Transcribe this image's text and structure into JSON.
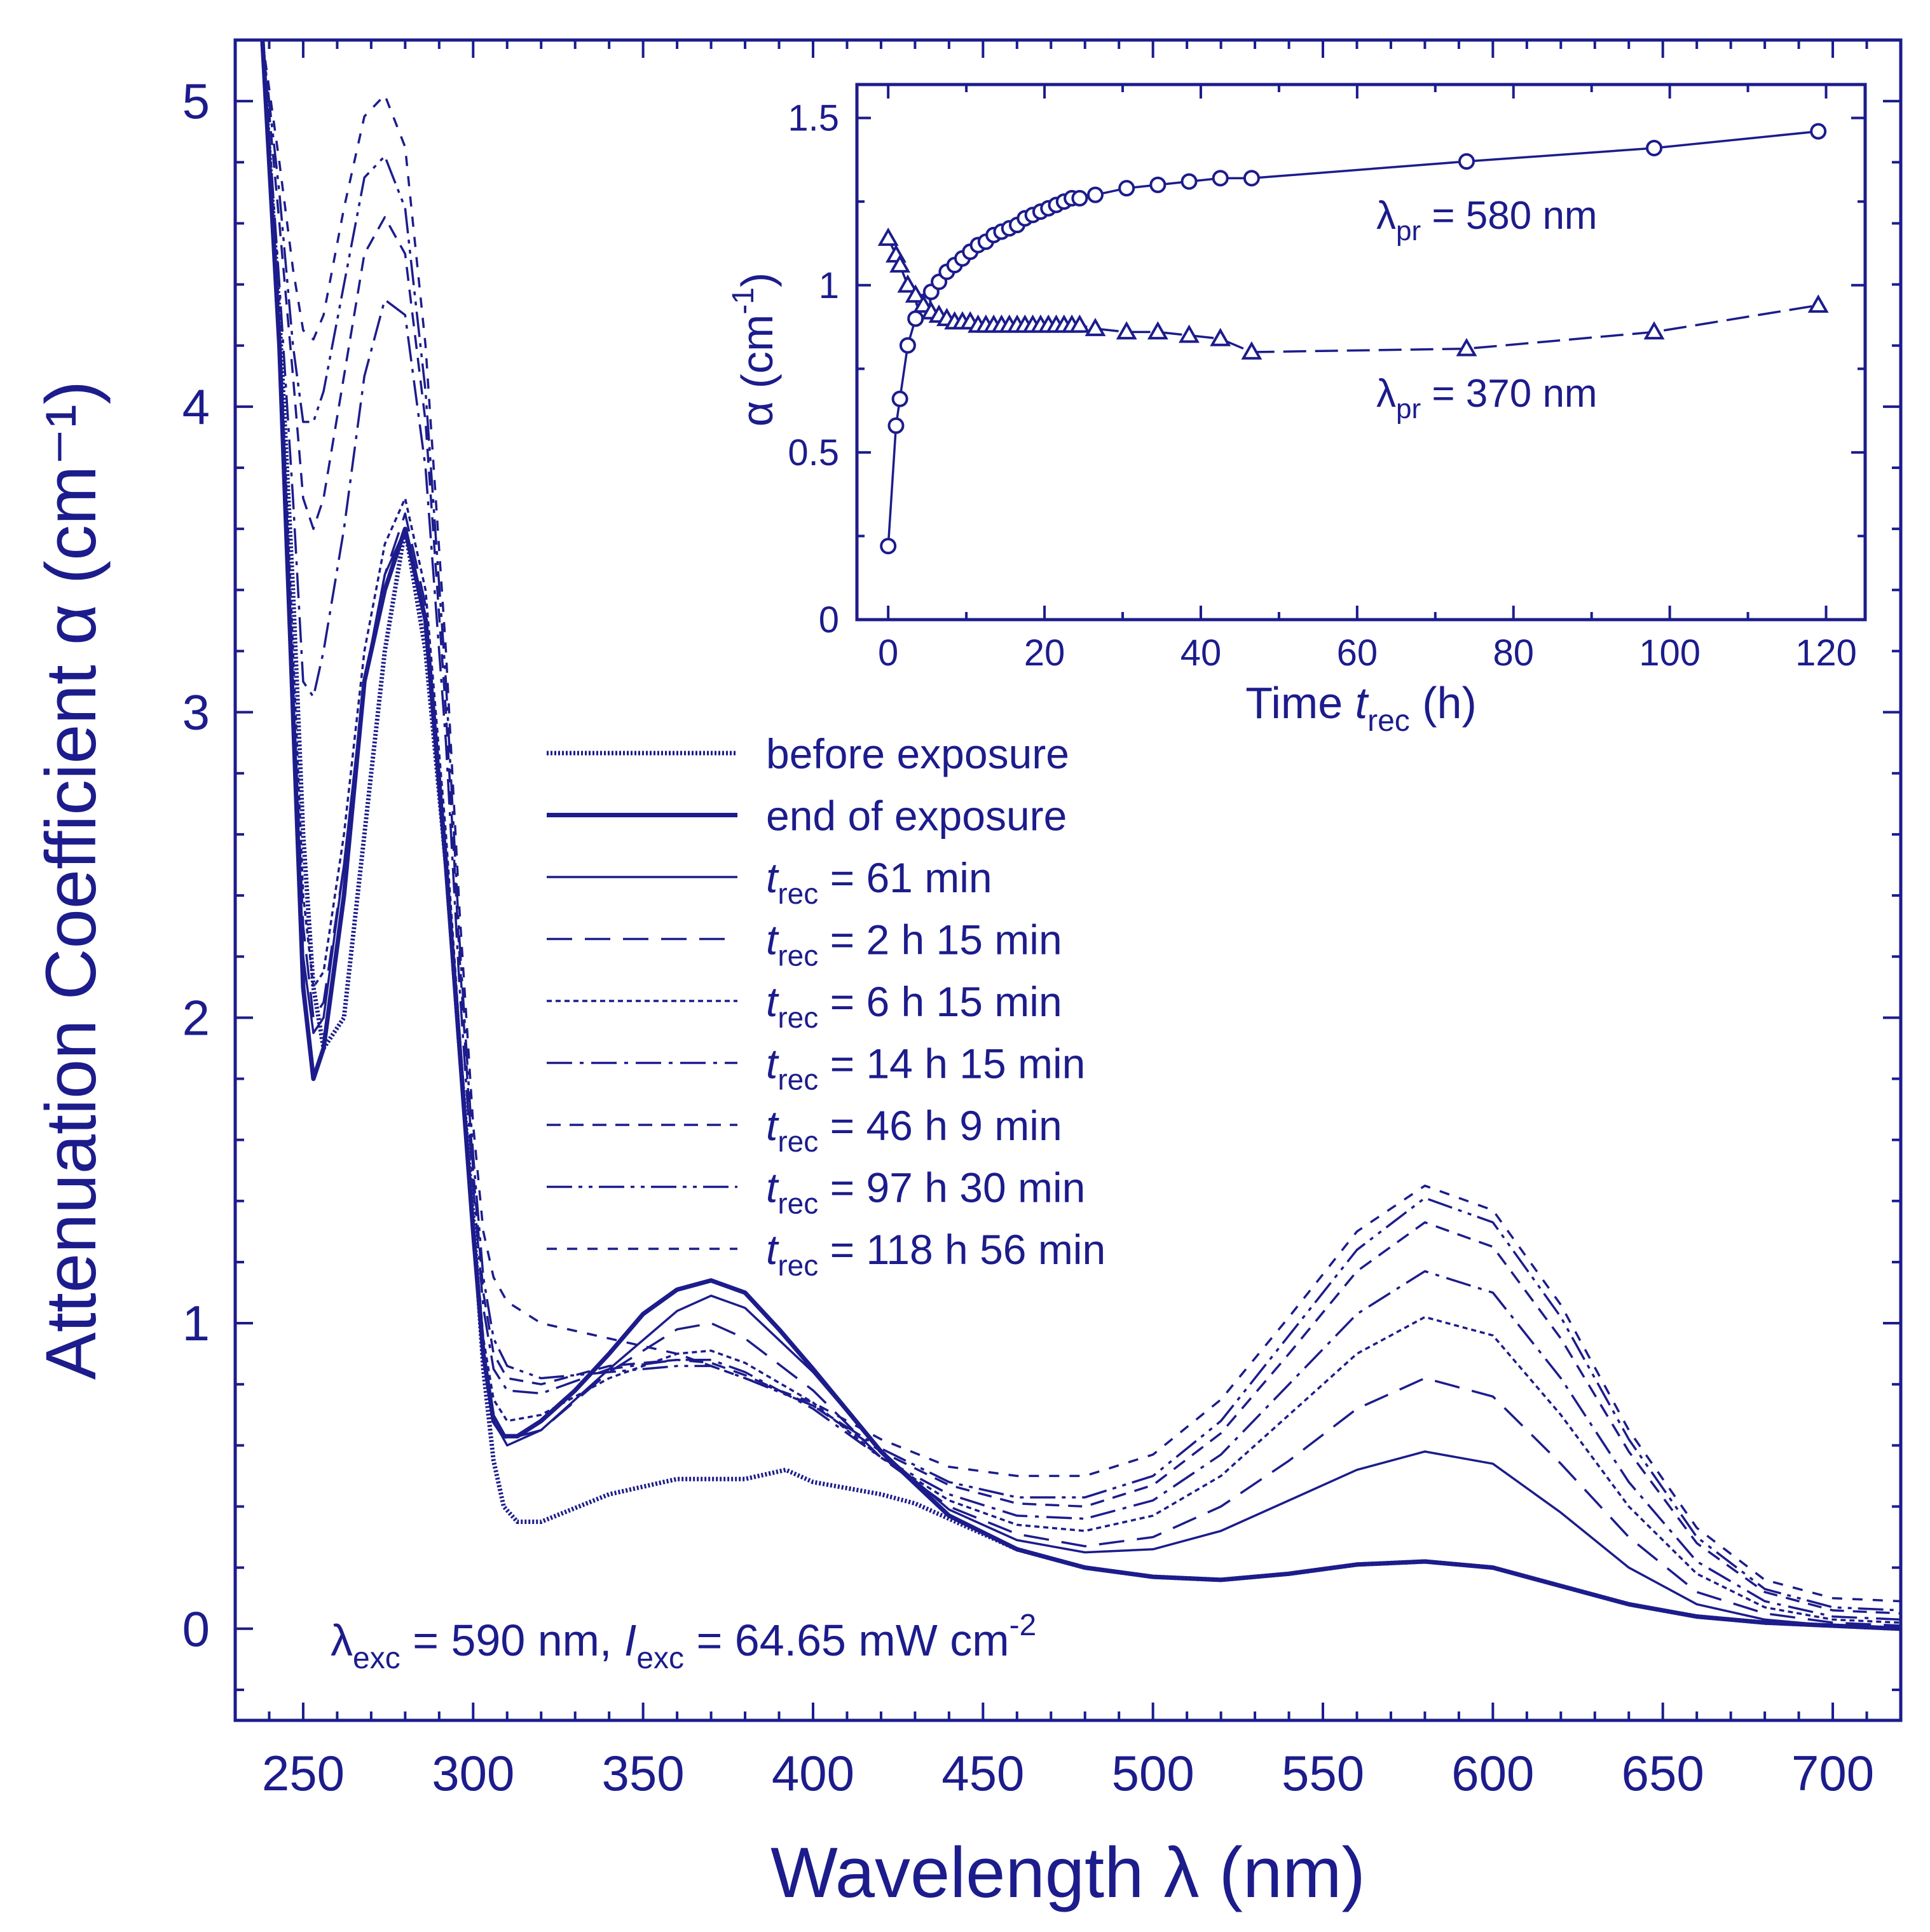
{
  "chart_data": [
    {
      "type": "line",
      "title": "",
      "xlabel": "Wavelength λ (nm)",
      "ylabel": "Attenuation Coefficient α (cm⁻¹)",
      "xlim": [
        230,
        720
      ],
      "ylim": [
        -0.3,
        5.2
      ],
      "xticks": [
        250,
        300,
        350,
        400,
        450,
        500,
        550,
        600,
        650,
        700
      ],
      "yticks": [
        0,
        1,
        2,
        3,
        4,
        5
      ],
      "legend_position": "center",
      "annotation": {
        "lambda_sym": "λ",
        "lambda_sub": "exc",
        "lambda_val": " = 590 nm, ",
        "i_sym": "I",
        "i_sub": "exc",
        "i_val": " = 64.65 mW cm",
        "i_sup": "-2"
      },
      "series": [
        {
          "name": "before exposure",
          "style": "dotted-bold",
          "label_prefix": "",
          "label_sub": "",
          "label": "before exposure",
          "x": [
            238,
            243,
            247,
            250,
            253,
            256,
            262,
            268,
            274,
            280,
            286,
            292,
            296,
            300,
            303,
            306,
            309,
            313,
            320,
            340,
            360,
            380,
            392,
            400,
            410,
            420,
            430,
            440,
            460,
            480,
            500,
            520,
            540,
            560,
            580,
            600,
            620,
            640,
            660,
            680,
            700,
            720
          ],
          "y": [
            5.2,
            4.3,
            3.4,
            2.6,
            2.1,
            1.9,
            2.0,
            2.6,
            3.2,
            3.6,
            3.2,
            2.5,
            1.9,
            1.35,
            0.85,
            0.55,
            0.4,
            0.35,
            0.35,
            0.44,
            0.49,
            0.49,
            0.52,
            0.48,
            0.46,
            0.44,
            0.41,
            0.36,
            0.26,
            0.2,
            0.17,
            0.16,
            0.18,
            0.21,
            0.22,
            0.2,
            0.14,
            0.08,
            0.04,
            0.02,
            0.01,
            0.0
          ]
        },
        {
          "name": "end of exposure",
          "style": "solid-bold",
          "label_prefix": "",
          "label_sub": "",
          "label": "end of exposure",
          "x": [
            238,
            243,
            247,
            250,
            253,
            256,
            262,
            268,
            274,
            280,
            286,
            292,
            296,
            300,
            303,
            306,
            309,
            313,
            320,
            330,
            340,
            350,
            360,
            370,
            380,
            390,
            400,
            420,
            440,
            460,
            480,
            500,
            520,
            540,
            560,
            580,
            600,
            620,
            640,
            660,
            680,
            700,
            720
          ],
          "y": [
            5.2,
            4.2,
            3.0,
            2.1,
            1.8,
            1.9,
            2.4,
            3.1,
            3.4,
            3.6,
            3.3,
            2.5,
            1.9,
            1.3,
            0.9,
            0.68,
            0.63,
            0.63,
            0.68,
            0.78,
            0.9,
            1.03,
            1.11,
            1.14,
            1.1,
            0.98,
            0.85,
            0.58,
            0.37,
            0.26,
            0.2,
            0.17,
            0.16,
            0.18,
            0.21,
            0.22,
            0.2,
            0.14,
            0.08,
            0.04,
            0.02,
            0.01,
            0.0
          ]
        },
        {
          "name": "t_rec = 61 min",
          "style": "solid",
          "label_prefix": "t",
          "label_sub": "rec",
          "label": " = 61 min",
          "x": [
            238,
            243,
            247,
            250,
            253,
            256,
            262,
            268,
            274,
            280,
            286,
            292,
            296,
            300,
            303,
            306,
            310,
            320,
            340,
            360,
            370,
            380,
            400,
            420,
            440,
            460,
            480,
            500,
            520,
            540,
            560,
            580,
            600,
            620,
            640,
            660,
            680,
            700,
            720
          ],
          "y": [
            5.2,
            4.2,
            3.1,
            2.2,
            1.95,
            2.0,
            2.5,
            3.1,
            3.45,
            3.6,
            3.3,
            2.5,
            1.9,
            1.3,
            0.9,
            0.68,
            0.6,
            0.65,
            0.85,
            1.04,
            1.09,
            1.05,
            0.84,
            0.58,
            0.39,
            0.29,
            0.25,
            0.26,
            0.32,
            0.42,
            0.52,
            0.58,
            0.54,
            0.38,
            0.2,
            0.08,
            0.03,
            0.01,
            0.0
          ]
        },
        {
          "name": "t_rec = 2 h 15 min",
          "style": "long-dash",
          "label_prefix": "t",
          "label_sub": "rec",
          "label": " = 2 h 15 min",
          "x": [
            238,
            243,
            247,
            250,
            253,
            256,
            262,
            268,
            274,
            280,
            286,
            292,
            296,
            300,
            303,
            306,
            310,
            320,
            340,
            360,
            370,
            380,
            400,
            420,
            440,
            460,
            480,
            500,
            520,
            540,
            560,
            580,
            600,
            620,
            640,
            660,
            680,
            700,
            720
          ],
          "y": [
            5.2,
            4.2,
            3.1,
            2.3,
            2.0,
            2.05,
            2.5,
            3.1,
            3.45,
            3.65,
            3.35,
            2.55,
            1.9,
            1.3,
            0.9,
            0.7,
            0.62,
            0.65,
            0.84,
            0.98,
            1.0,
            0.95,
            0.78,
            0.56,
            0.4,
            0.31,
            0.27,
            0.3,
            0.4,
            0.55,
            0.72,
            0.82,
            0.76,
            0.54,
            0.3,
            0.12,
            0.05,
            0.02,
            0.01
          ]
        },
        {
          "name": "t_rec = 6 h 15 min",
          "style": "dotted",
          "label_prefix": "t",
          "label_sub": "rec",
          "label": " = 6 h 15 min",
          "x": [
            238,
            243,
            247,
            250,
            253,
            256,
            262,
            268,
            274,
            280,
            286,
            292,
            296,
            300,
            303,
            306,
            310,
            320,
            340,
            360,
            370,
            380,
            400,
            420,
            440,
            460,
            480,
            500,
            520,
            540,
            560,
            580,
            600,
            620,
            640,
            660,
            680,
            700,
            720
          ],
          "y": [
            5.2,
            4.3,
            3.2,
            2.4,
            2.1,
            2.15,
            2.6,
            3.2,
            3.55,
            3.7,
            3.4,
            2.6,
            1.95,
            1.35,
            0.95,
            0.75,
            0.68,
            0.7,
            0.82,
            0.9,
            0.91,
            0.87,
            0.74,
            0.56,
            0.42,
            0.34,
            0.32,
            0.37,
            0.5,
            0.7,
            0.9,
            1.02,
            0.96,
            0.7,
            0.4,
            0.18,
            0.07,
            0.03,
            0.02
          ]
        },
        {
          "name": "t_rec = 14 h 15 min",
          "style": "dash-dot",
          "label_prefix": "t",
          "label_sub": "rec",
          "label": " = 14 h 15 min",
          "x": [
            238,
            243,
            247,
            250,
            253,
            256,
            262,
            268,
            274,
            280,
            286,
            292,
            296,
            300,
            303,
            306,
            310,
            320,
            340,
            360,
            370,
            380,
            400,
            420,
            440,
            460,
            480,
            500,
            520,
            540,
            560,
            580,
            600,
            620,
            640,
            660,
            680,
            700,
            720
          ],
          "y": [
            5.2,
            4.4,
            3.7,
            3.1,
            3.05,
            3.2,
            3.6,
            4.1,
            4.35,
            4.3,
            3.8,
            2.9,
            2.1,
            1.45,
            1.05,
            0.85,
            0.78,
            0.77,
            0.85,
            0.88,
            0.88,
            0.84,
            0.72,
            0.56,
            0.44,
            0.37,
            0.36,
            0.42,
            0.57,
            0.8,
            1.03,
            1.17,
            1.1,
            0.82,
            0.48,
            0.22,
            0.09,
            0.04,
            0.03
          ]
        },
        {
          "name": "t_rec = 46 h 9 min",
          "style": "medium-dash",
          "label_prefix": "t",
          "label_sub": "rec",
          "label": " = 46 h 9 min",
          "x": [
            238,
            243,
            247,
            250,
            253,
            256,
            262,
            268,
            274,
            280,
            286,
            292,
            296,
            300,
            303,
            306,
            310,
            320,
            340,
            360,
            370,
            380,
            400,
            420,
            440,
            460,
            480,
            500,
            520,
            540,
            560,
            580,
            600,
            620,
            640,
            660,
            680,
            700,
            720
          ],
          "y": [
            5.2,
            4.6,
            4.1,
            3.7,
            3.6,
            3.7,
            4.1,
            4.5,
            4.62,
            4.5,
            3.95,
            3.0,
            2.2,
            1.5,
            1.1,
            0.9,
            0.82,
            0.8,
            0.86,
            0.88,
            0.87,
            0.83,
            0.73,
            0.58,
            0.47,
            0.41,
            0.4,
            0.47,
            0.64,
            0.9,
            1.17,
            1.33,
            1.25,
            0.95,
            0.58,
            0.28,
            0.12,
            0.06,
            0.05
          ]
        },
        {
          "name": "t_rec = 97 h 30 min",
          "style": "dash-dot-dot",
          "label_prefix": "t",
          "label_sub": "rec",
          "label": " = 97 h 30 min",
          "x": [
            238,
            243,
            247,
            250,
            253,
            256,
            262,
            268,
            274,
            280,
            286,
            292,
            296,
            300,
            303,
            306,
            310,
            320,
            340,
            360,
            370,
            380,
            400,
            420,
            440,
            460,
            480,
            500,
            520,
            540,
            560,
            580,
            600,
            620,
            640,
            660,
            680,
            700,
            720
          ],
          "y": [
            5.2,
            4.7,
            4.2,
            3.95,
            3.95,
            4.05,
            4.4,
            4.75,
            4.82,
            4.65,
            4.05,
            3.1,
            2.25,
            1.55,
            1.15,
            0.95,
            0.86,
            0.82,
            0.84,
            0.86,
            0.86,
            0.82,
            0.73,
            0.59,
            0.48,
            0.43,
            0.43,
            0.5,
            0.68,
            0.96,
            1.24,
            1.41,
            1.33,
            1.02,
            0.62,
            0.3,
            0.13,
            0.07,
            0.06
          ]
        },
        {
          "name": "t_rec = 118 h 56 min",
          "style": "short-dash",
          "label_prefix": "t",
          "label_sub": "rec",
          "label": " = 118 h 56 min",
          "x": [
            238,
            243,
            247,
            250,
            253,
            256,
            262,
            268,
            274,
            280,
            286,
            292,
            296,
            300,
            303,
            306,
            310,
            320,
            340,
            360,
            370,
            380,
            400,
            420,
            440,
            460,
            480,
            500,
            520,
            540,
            560,
            580,
            600,
            620,
            640,
            660,
            680,
            700,
            720
          ],
          "y": [
            5.2,
            4.8,
            4.45,
            4.25,
            4.22,
            4.3,
            4.65,
            4.95,
            5.02,
            4.85,
            4.2,
            3.2,
            2.35,
            1.65,
            1.3,
            1.15,
            1.07,
            1.0,
            0.95,
            0.9,
            0.86,
            0.82,
            0.74,
            0.62,
            0.53,
            0.5,
            0.5,
            0.57,
            0.75,
            1.02,
            1.3,
            1.45,
            1.37,
            1.06,
            0.65,
            0.33,
            0.16,
            0.1,
            0.09
          ]
        }
      ]
    },
    {
      "type": "scatter",
      "title": "",
      "xlabel_main": "Time  ",
      "xlabel_sym": "t",
      "xlabel_sub": "rec",
      "xlabel_unit": "  (h)",
      "ylabel_sym": "α",
      "ylabel_main": "  (cm",
      "ylabel_sup": "-1",
      "ylabel_close": ")",
      "xlim": [
        -4,
        125
      ],
      "ylim": [
        0,
        1.6
      ],
      "xticks": [
        0,
        20,
        40,
        60,
        80,
        100,
        120
      ],
      "ytick_labels": [
        "0",
        "0.5",
        "1",
        "1.5"
      ],
      "yticks": [
        0,
        0.5,
        1,
        1.5
      ],
      "series": [
        {
          "name": "λpr = 580 nm",
          "marker": "circle",
          "line": "solid",
          "label_sym": "λ",
          "label_sub": "pr",
          "label_val": " = 580 nm",
          "x": [
            0,
            1,
            1.5,
            2.5,
            3.5,
            4.5,
            5.5,
            6.5,
            7.5,
            8.5,
            9.5,
            10.5,
            11.5,
            12.5,
            13.5,
            14.5,
            15.5,
            16.5,
            17.5,
            18.5,
            19.5,
            20.5,
            21.5,
            22.5,
            23.5,
            24.5,
            26.5,
            30.5,
            34.5,
            38.5,
            42.5,
            46.5,
            74,
            98,
            119
          ],
          "y": [
            0.22,
            0.58,
            0.66,
            0.82,
            0.9,
            0.95,
            0.98,
            1.01,
            1.04,
            1.06,
            1.08,
            1.1,
            1.12,
            1.13,
            1.15,
            1.16,
            1.17,
            1.18,
            1.2,
            1.21,
            1.22,
            1.23,
            1.24,
            1.25,
            1.26,
            1.26,
            1.27,
            1.29,
            1.3,
            1.31,
            1.32,
            1.32,
            1.37,
            1.41,
            1.46
          ]
        },
        {
          "name": "λpr = 370 nm",
          "marker": "triangle",
          "line": "dashed",
          "label_sym": "λ",
          "label_sub": "pr",
          "label_val": " = 370 nm",
          "x": [
            0,
            1,
            1.5,
            2.5,
            3.5,
            4.5,
            5.5,
            6.5,
            7.5,
            8.5,
            9.5,
            10.5,
            11.5,
            12.5,
            13.5,
            14.5,
            15.5,
            16.5,
            17.5,
            18.5,
            19.5,
            20.5,
            21.5,
            22.5,
            23.5,
            24.5,
            26.5,
            30.5,
            34.5,
            38.5,
            42.5,
            46.5,
            74,
            98,
            119
          ],
          "y": [
            1.14,
            1.09,
            1.06,
            1.0,
            0.97,
            0.94,
            0.92,
            0.91,
            0.9,
            0.89,
            0.89,
            0.89,
            0.88,
            0.88,
            0.88,
            0.88,
            0.88,
            0.88,
            0.88,
            0.88,
            0.88,
            0.88,
            0.88,
            0.88,
            0.88,
            0.88,
            0.87,
            0.86,
            0.86,
            0.85,
            0.84,
            0.8,
            0.81,
            0.86,
            0.94
          ]
        }
      ]
    }
  ]
}
